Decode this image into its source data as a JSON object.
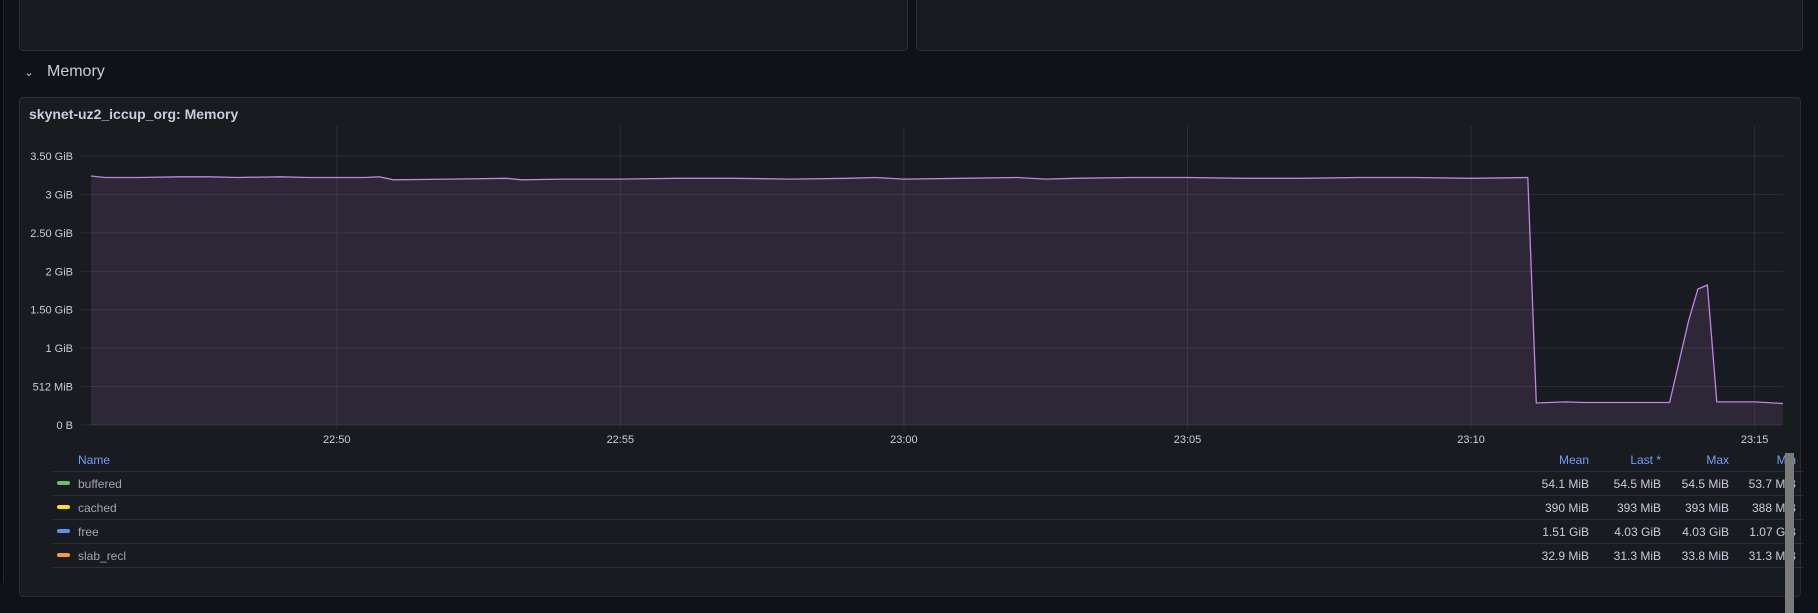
{
  "row": {
    "title": "Memory",
    "chevron_icon": "chevron-down-icon"
  },
  "panel": {
    "title": "skynet-uz2_iccup_org: Memory",
    "series_color": "#c283e8",
    "legend": {
      "headers": {
        "name": "Name",
        "mean": "Mean",
        "last": "Last *",
        "max": "Max",
        "min": "Min"
      },
      "rows": [
        {
          "name": "buffered",
          "color": "#73bf69",
          "mean": "54.1 MiB",
          "last": "54.5 MiB",
          "max": "54.5 MiB",
          "min": "53.7 MiB"
        },
        {
          "name": "cached",
          "color": "#fade2a",
          "mean": "390 MiB",
          "last": "393 MiB",
          "max": "393 MiB",
          "min": "388 MiB"
        },
        {
          "name": "free",
          "color": "#5794f2",
          "mean": "1.51 GiB",
          "last": "4.03 GiB",
          "max": "4.03 GiB",
          "min": "1.07 GiB"
        },
        {
          "name": "slab_recl",
          "color": "#ff9830",
          "mean": "32.9 MiB",
          "last": "31.3 MiB",
          "max": "33.8 MiB",
          "min": "31.3 MiB"
        }
      ]
    }
  },
  "chart_data": {
    "type": "area",
    "title": "skynet-uz2_iccup_org: Memory",
    "xlabel": "",
    "ylabel": "",
    "x_range": [
      "22:45:40",
      "23:15:30"
    ],
    "ylim_gib": [
      0,
      3.5
    ],
    "y_ticks": [
      "0 B",
      "512 MiB",
      "1 GiB",
      "1.50 GiB",
      "2 GiB",
      "2.50 GiB",
      "3 GiB",
      "3.50 GiB"
    ],
    "x_ticks": [
      "22:50",
      "22:55",
      "23:00",
      "23:05",
      "23:10",
      "23:15"
    ],
    "grid": true,
    "series": [
      {
        "color": "#c283e8",
        "points": [
          [
            "22:45:40",
            3.24
          ],
          [
            "22:45:55",
            3.22
          ],
          [
            "22:46:30",
            3.22
          ],
          [
            "22:47:15",
            3.23
          ],
          [
            "22:47:45",
            3.23
          ],
          [
            "22:48:15",
            3.22
          ],
          [
            "22:49:00",
            3.23
          ],
          [
            "22:49:30",
            3.22
          ],
          [
            "22:50:00",
            3.22
          ],
          [
            "22:50:30",
            3.22
          ],
          [
            "22:50:45",
            3.23
          ],
          [
            "22:51:00",
            3.19
          ],
          [
            "22:52:00",
            3.2
          ],
          [
            "22:53:00",
            3.21
          ],
          [
            "22:53:15",
            3.19
          ],
          [
            "22:54:00",
            3.2
          ],
          [
            "22:55:00",
            3.2
          ],
          [
            "22:56:00",
            3.21
          ],
          [
            "22:57:00",
            3.21
          ],
          [
            "22:58:00",
            3.2
          ],
          [
            "22:59:00",
            3.21
          ],
          [
            "22:59:30",
            3.22
          ],
          [
            "23:00:00",
            3.2
          ],
          [
            "23:01:00",
            3.21
          ],
          [
            "23:02:00",
            3.22
          ],
          [
            "23:02:30",
            3.2
          ],
          [
            "23:03:00",
            3.21
          ],
          [
            "23:04:00",
            3.22
          ],
          [
            "23:05:00",
            3.22
          ],
          [
            "23:06:00",
            3.21
          ],
          [
            "23:07:00",
            3.21
          ],
          [
            "23:08:00",
            3.22
          ],
          [
            "23:09:00",
            3.22
          ],
          [
            "23:10:00",
            3.21
          ],
          [
            "23:11:00",
            3.22
          ],
          [
            "23:11:09",
            0.286
          ],
          [
            "23:11:40",
            0.3
          ],
          [
            "23:12:00",
            0.293
          ],
          [
            "23:13:30",
            0.293
          ],
          [
            "23:13:50",
            1.35
          ],
          [
            "23:14:00",
            1.77
          ],
          [
            "23:14:10",
            1.82
          ],
          [
            "23:14:20",
            0.3
          ],
          [
            "23:15:00",
            0.3
          ],
          [
            "23:15:30",
            0.28
          ]
        ]
      }
    ]
  }
}
